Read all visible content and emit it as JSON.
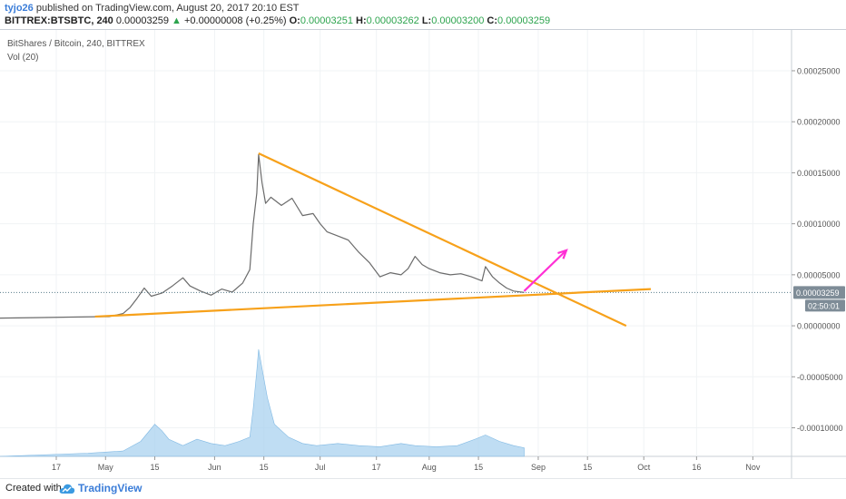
{
  "header": {
    "author": "tyjo26",
    "published": "published on TradingView.com, August 20, 2017 20:10 EST",
    "symbol": "BITTREX:BTSBTC, 240",
    "price": "0.00003259",
    "change_arrow": "▲",
    "change": "+0.00000008 (+0.25%)",
    "o_label": "O:",
    "o_value": "0.00003251",
    "h_label": "H:",
    "h_value": "0.00003262",
    "l_label": "L:",
    "l_value": "0.00003200",
    "c_label": "C:",
    "c_value": "0.00003259"
  },
  "chart_data": {
    "type": "line",
    "title": "BitShares / Bitcoin, 240, BITTREX",
    "indicator": "Vol (20)",
    "y_ticks": [
      "0.00025000",
      "0.00020000",
      "0.00015000",
      "0.00010000",
      "0.00005000",
      "0.00000000",
      "-0.00005000",
      "-0.00010000"
    ],
    "y_tick_values": [
      0.00025,
      0.0002,
      0.00015,
      0.0001,
      5e-05,
      0,
      -5e-05,
      -0.0001
    ],
    "ylim": [
      -0.000128,
      0.00029
    ],
    "x_ticks": [
      "17",
      "May",
      "15",
      "Jun",
      "15",
      "Jul",
      "17",
      "Aug",
      "15",
      "Sep",
      "15",
      "Oct",
      "16",
      "Nov"
    ],
    "x_tick_days": [
      -14,
      0,
      14,
      31,
      45,
      61,
      77,
      92,
      106,
      123,
      137,
      153,
      168,
      184
    ],
    "xlim_days": [
      -30,
      195
    ],
    "last_price_label": "0.00003259",
    "last_price": 3.259e-05,
    "countdown_label": "02:50:01",
    "price_path": [
      [
        -30,
        7.5e-06
      ],
      [
        -20,
        8e-06
      ],
      [
        -10,
        8.5e-06
      ],
      [
        -3,
        8.9e-06
      ],
      [
        1,
        9e-06
      ],
      [
        5,
        1.2e-05
      ],
      [
        7,
        1.8e-05
      ],
      [
        9,
        2.7e-05
      ],
      [
        11,
        3.7e-05
      ],
      [
        13,
        2.9e-05
      ],
      [
        16,
        3.2e-05
      ],
      [
        19,
        3.9e-05
      ],
      [
        22,
        4.7e-05
      ],
      [
        24,
        3.9e-05
      ],
      [
        27,
        3.4e-05
      ],
      [
        30,
        3e-05
      ],
      [
        33,
        3.6e-05
      ],
      [
        36,
        3.3e-05
      ],
      [
        39,
        4.2e-05
      ],
      [
        41,
        5.5e-05
      ],
      [
        42,
        0.0001
      ],
      [
        43,
        0.00013
      ],
      [
        43.5,
        0.000168
      ],
      [
        44.5,
        0.00014
      ],
      [
        45.5,
        0.00012
      ],
      [
        47,
        0.000126
      ],
      [
        50,
        0.000118
      ],
      [
        53,
        0.000125
      ],
      [
        56,
        0.000108
      ],
      [
        59,
        0.00011
      ],
      [
        61,
        0.0001
      ],
      [
        63,
        9.2e-05
      ],
      [
        66,
        8.8e-05
      ],
      [
        69,
        8.4e-05
      ],
      [
        72,
        7.2e-05
      ],
      [
        75,
        6.2e-05
      ],
      [
        78,
        4.8e-05
      ],
      [
        81,
        5.2e-05
      ],
      [
        84,
        5e-05
      ],
      [
        86,
        5.6e-05
      ],
      [
        88,
        6.8e-05
      ],
      [
        90,
        6e-05
      ],
      [
        92,
        5.6e-05
      ],
      [
        95,
        5.2e-05
      ],
      [
        98,
        5e-05
      ],
      [
        101,
        5.1e-05
      ],
      [
        104,
        4.8e-05
      ],
      [
        107,
        4.4e-05
      ],
      [
        108,
        5.8e-05
      ],
      [
        110,
        4.8e-05
      ],
      [
        112,
        4.2e-05
      ],
      [
        114,
        3.7e-05
      ],
      [
        116,
        3.4e-05
      ],
      [
        119,
        3.26e-05
      ]
    ],
    "volume_path": [
      [
        -30,
        0.0
      ],
      [
        -5,
        0.03
      ],
      [
        5,
        0.05
      ],
      [
        10,
        0.14
      ],
      [
        12,
        0.22
      ],
      [
        14,
        0.3
      ],
      [
        16,
        0.24
      ],
      [
        18,
        0.16
      ],
      [
        22,
        0.1
      ],
      [
        26,
        0.16
      ],
      [
        30,
        0.12
      ],
      [
        34,
        0.1
      ],
      [
        38,
        0.14
      ],
      [
        41,
        0.18
      ],
      [
        42,
        0.45
      ],
      [
        43,
        0.8
      ],
      [
        43.5,
        1.0
      ],
      [
        44.5,
        0.82
      ],
      [
        46,
        0.55
      ],
      [
        48,
        0.3
      ],
      [
        52,
        0.18
      ],
      [
        56,
        0.12
      ],
      [
        60,
        0.1
      ],
      [
        66,
        0.12
      ],
      [
        72,
        0.1
      ],
      [
        78,
        0.09
      ],
      [
        84,
        0.12
      ],
      [
        88,
        0.1
      ],
      [
        94,
        0.09
      ],
      [
        100,
        0.1
      ],
      [
        105,
        0.16
      ],
      [
        108,
        0.2
      ],
      [
        112,
        0.14
      ],
      [
        116,
        0.1
      ],
      [
        119,
        0.08
      ]
    ],
    "trendline_upper": [
      [
        43.5,
        0.000169
      ],
      [
        148,
        0.0
      ]
    ],
    "trendline_lower": [
      [
        -3,
        9e-06
      ],
      [
        155,
        3.6e-05
      ]
    ],
    "projection_arrow": [
      [
        119,
        3.4e-05
      ],
      [
        131,
        7.4e-05
      ]
    ],
    "colors": {
      "trendline": "#f7a11a",
      "arrow": "#ff2fd5",
      "price_line": "#6b6b6b",
      "volume_fill": "#a9d1ef",
      "last_price_bg": "#7e8c97",
      "countdown_bg": "#7e8c97"
    }
  },
  "footer": {
    "created_with": "Created with",
    "brand": "TradingView"
  }
}
